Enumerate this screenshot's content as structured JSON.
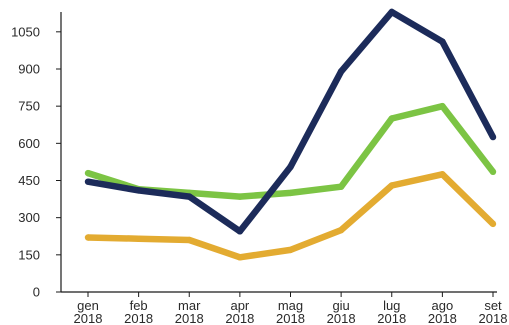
{
  "chart_data": {
    "type": "line",
    "title": "",
    "xlabel": "",
    "ylabel": "",
    "categories": [
      [
        "gen",
        "2018"
      ],
      [
        "feb",
        "2018"
      ],
      [
        "mar",
        "2018"
      ],
      [
        "apr",
        "2018"
      ],
      [
        "mag",
        "2018"
      ],
      [
        "giu",
        "2018"
      ],
      [
        "lug",
        "2018"
      ],
      [
        "ago",
        "2018"
      ],
      [
        "set",
        "2018"
      ]
    ],
    "yticks": [
      0,
      150,
      300,
      450,
      600,
      750,
      900,
      1050
    ],
    "ylim": [
      0,
      1130
    ],
    "grid": false,
    "legend": "none",
    "series": [
      {
        "color": "#7cc444",
        "values": [
          480,
          415,
          400,
          385,
          400,
          425,
          700,
          750,
          485
        ]
      },
      {
        "color": "#1c2b5a",
        "values": [
          445,
          410,
          385,
          245,
          505,
          890,
          1130,
          1010,
          625
        ]
      },
      {
        "color": "#e3ab31",
        "values": [
          220,
          215,
          210,
          140,
          170,
          250,
          430,
          475,
          275
        ]
      }
    ],
    "axis_color": "#1a1a1a"
  }
}
